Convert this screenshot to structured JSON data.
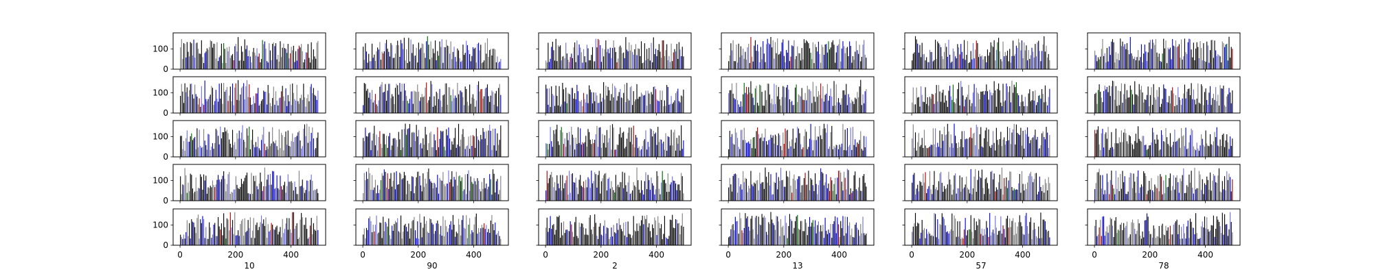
{
  "chart_data": {
    "type": "bar",
    "layout": {
      "rows": 5,
      "cols": 6,
      "shared_x": true,
      "shared_y_per_row": true
    },
    "xlim": [
      -25,
      525
    ],
    "ylim": [
      0,
      180
    ],
    "x_ticks": [
      0,
      200,
      400
    ],
    "y_ticks": [
      0,
      100
    ],
    "grid": false,
    "column_labels": [
      "10",
      "90",
      "2",
      "13",
      "57",
      "78"
    ],
    "bar_colors": [
      "#000000",
      "#808080",
      "#0000cc",
      "#6f6fe0",
      "#aa0000",
      "#006400"
    ],
    "bar_color_weights": [
      0.44,
      0.28,
      0.14,
      0.1,
      0.025,
      0.015
    ],
    "series_summary": {
      "x_range": [
        0,
        500
      ],
      "bar_count_per_panel": 125,
      "typical_value_range": [
        30,
        150
      ],
      "max_value": 165
    }
  }
}
